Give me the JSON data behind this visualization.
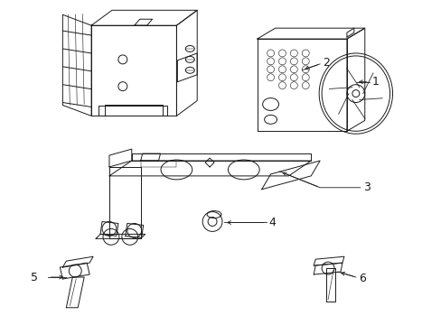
{
  "background_color": "#ffffff",
  "line_color": "#1a1a1a",
  "line_width": 0.7,
  "fig_width": 4.89,
  "fig_height": 3.6,
  "dpi": 100
}
